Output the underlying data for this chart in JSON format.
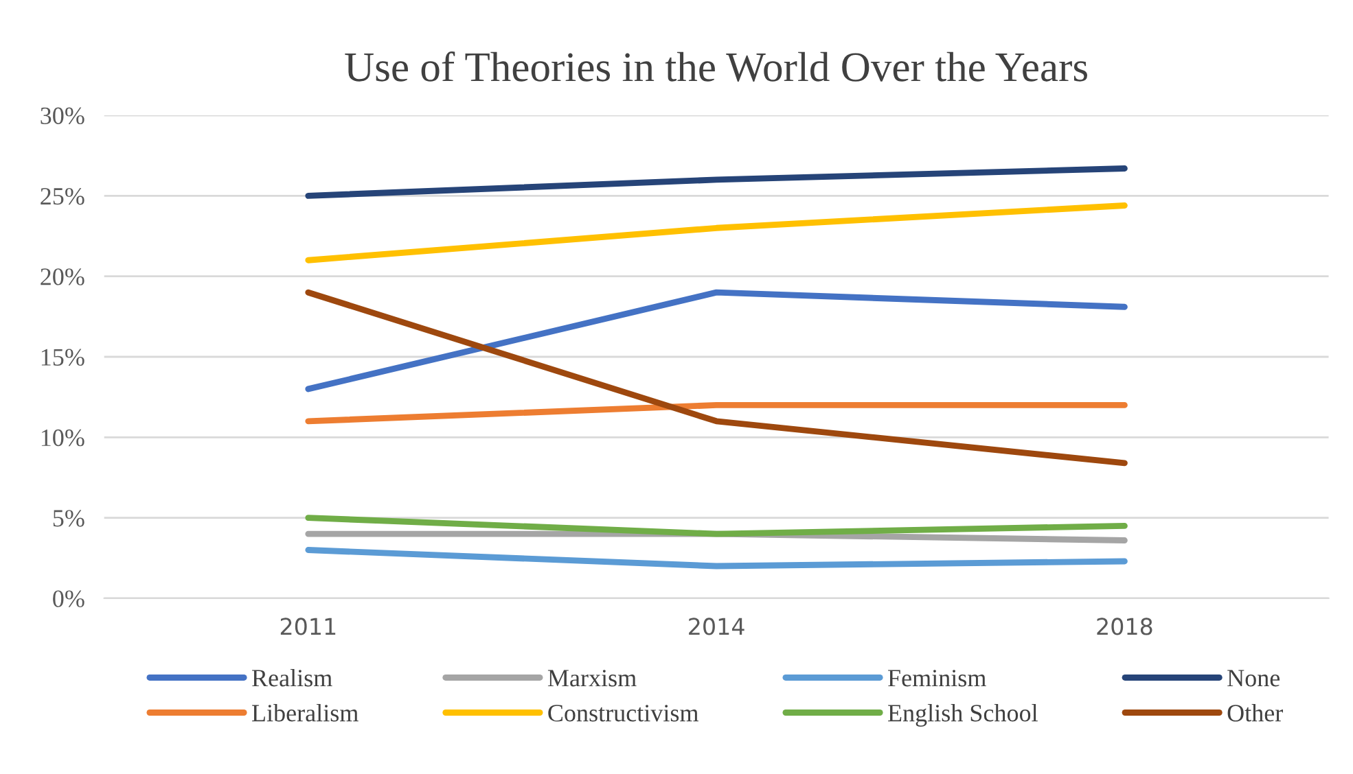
{
  "chart_data": {
    "type": "line",
    "title": "Use of Theories in the World Over the Years",
    "categories": [
      "2011",
      "2014",
      "2018"
    ],
    "series": [
      {
        "name": "Realism",
        "color": "#4472c4",
        "values": [
          13,
          19,
          18.1
        ]
      },
      {
        "name": "Liberalism",
        "color": "#ed7d31",
        "values": [
          11,
          12,
          12
        ]
      },
      {
        "name": "Marxism",
        "color": "#a5a5a5",
        "values": [
          4,
          4,
          3.6
        ]
      },
      {
        "name": "Constructivism",
        "color": "#ffc000",
        "values": [
          21,
          23,
          24.4
        ]
      },
      {
        "name": "Feminism",
        "color": "#5b9bd5",
        "values": [
          3,
          2,
          2.3
        ]
      },
      {
        "name": "English School",
        "color": "#70ad47",
        "values": [
          5,
          4,
          4.5
        ]
      },
      {
        "name": "None",
        "color": "#264478",
        "values": [
          25,
          26,
          26.7
        ]
      },
      {
        "name": "Other",
        "color": "#9e480e",
        "values": [
          19,
          11,
          8.4
        ]
      }
    ],
    "ylim": [
      0,
      30
    ],
    "yticks": [
      {
        "value": 0,
        "label": "0%"
      },
      {
        "value": 5,
        "label": "5%"
      },
      {
        "value": 10,
        "label": "10%"
      },
      {
        "value": 15,
        "label": "15%"
      },
      {
        "value": 20,
        "label": "20%"
      },
      {
        "value": 25,
        "label": "25%"
      },
      {
        "value": 30,
        "label": "30%"
      }
    ],
    "grid": "y",
    "legend": "bottom",
    "marker": "none",
    "line_style": "solid"
  }
}
